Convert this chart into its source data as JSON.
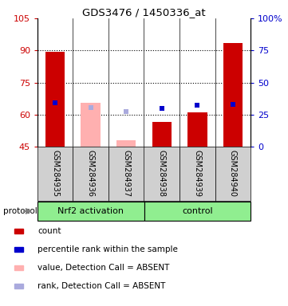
{
  "title": "GDS3476 / 1450336_at",
  "samples": [
    "GSM284935",
    "GSM284936",
    "GSM284937",
    "GSM284938",
    "GSM284939",
    "GSM284940"
  ],
  "ylim_left": [
    45,
    105
  ],
  "yticks_left": [
    45,
    60,
    75,
    90,
    105
  ],
  "ytick_labels_left": [
    "45",
    "60",
    "75",
    "90",
    "105"
  ],
  "yticks_right": [
    0,
    25,
    50,
    75,
    100
  ],
  "ytick_labels_right": [
    "0",
    "25",
    "50",
    "75",
    "100%"
  ],
  "count_values": [
    89.5,
    null,
    null,
    56.5,
    61.0,
    93.5
  ],
  "absent_value_values": [
    null,
    65.5,
    48.0,
    null,
    null,
    null
  ],
  "present_rank_data": [
    [
      0,
      65.5
    ],
    [
      3,
      63.0
    ],
    [
      4,
      64.5
    ],
    [
      5,
      65.0
    ]
  ],
  "absent_rank_data": [
    [
      1,
      63.5
    ],
    [
      2,
      61.5
    ]
  ],
  "bar_base": 45,
  "bar_color": "#cc0000",
  "absent_bar_color": "#ffb0b0",
  "rank_color": "#0000cc",
  "absent_rank_color": "#aaaadd",
  "bg_color": "#d0d0d0",
  "group_color": "#90ee90",
  "grid_dotted": [
    60,
    75,
    90
  ],
  "groups": [
    {
      "label": "Nrf2 activation",
      "start": 0,
      "end": 3
    },
    {
      "label": "control",
      "start": 3,
      "end": 6
    }
  ],
  "legend_items": [
    {
      "color": "#cc0000",
      "label": "count"
    },
    {
      "color": "#0000cc",
      "label": "percentile rank within the sample"
    },
    {
      "color": "#ffb0b0",
      "label": "value, Detection Call = ABSENT"
    },
    {
      "color": "#aaaadd",
      "label": "rank, Detection Call = ABSENT"
    }
  ]
}
